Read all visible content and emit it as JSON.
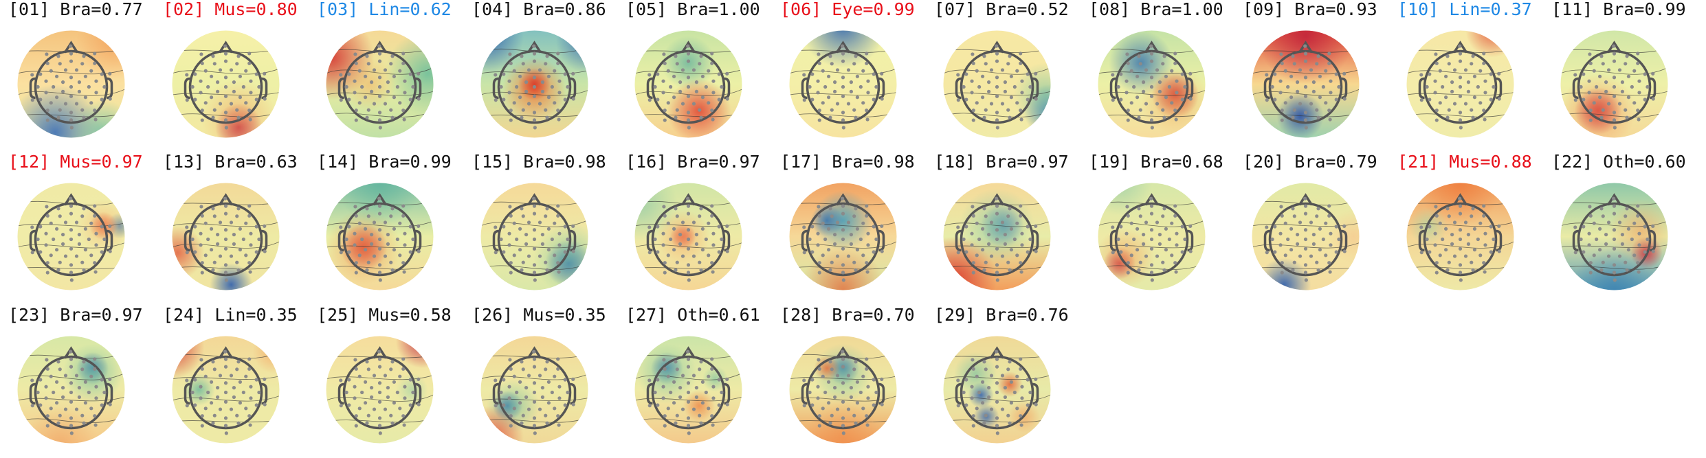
{
  "palette": {
    "black": "#111111",
    "red": "#e8101a",
    "blue": "#1e88e5"
  },
  "components": [
    {
      "index": "[01]",
      "label": "Bra=0.77",
      "color": "black",
      "scheme": "grad-tb-orange-blue"
    },
    {
      "index": "[02]",
      "label": "Mus=0.80",
      "color": "red",
      "scheme": "bottom-red"
    },
    {
      "index": "[03]",
      "label": "Lin=0.62",
      "color": "blue",
      "scheme": "left-red-right-green"
    },
    {
      "index": "[04]",
      "label": "Bra=0.86",
      "color": "black",
      "scheme": "center-red-edge-blue"
    },
    {
      "index": "[05]",
      "label": "Bra=1.00",
      "color": "black",
      "scheme": "top-green-bottom-red"
    },
    {
      "index": "[06]",
      "label": "Eye=0.99",
      "color": "red",
      "scheme": "top-blue-band"
    },
    {
      "index": "[07]",
      "label": "Bra=0.52",
      "color": "black",
      "scheme": "flat-right-blue"
    },
    {
      "index": "[08]",
      "label": "Bra=1.00",
      "color": "black",
      "scheme": "blue-left-red-right"
    },
    {
      "index": "[09]",
      "label": "Bra=0.93",
      "color": "black",
      "scheme": "top-red-bottom-blue"
    },
    {
      "index": "[10]",
      "label": "Lin=0.37",
      "color": "blue",
      "scheme": "flat-topright-red"
    },
    {
      "index": "[11]",
      "label": "Bra=0.99",
      "color": "black",
      "scheme": "left-red-spot"
    },
    {
      "index": "[12]",
      "label": "Mus=0.97",
      "color": "red",
      "scheme": "right-red-edge"
    },
    {
      "index": "[13]",
      "label": "Bra=0.63",
      "color": "black",
      "scheme": "bottom-blue-spot"
    },
    {
      "index": "[14]",
      "label": "Bra=0.99",
      "color": "black",
      "scheme": "left-red-top-green"
    },
    {
      "index": "[15]",
      "label": "Bra=0.98",
      "color": "black",
      "scheme": "bottom-right-blue"
    },
    {
      "index": "[16]",
      "label": "Bra=0.97",
      "color": "black",
      "scheme": "center-red-spot"
    },
    {
      "index": "[17]",
      "label": "Bra=0.98",
      "color": "black",
      "scheme": "center-blue-edge-red"
    },
    {
      "index": "[18]",
      "label": "Bra=0.97",
      "color": "black",
      "scheme": "center-blue-bottom-red"
    },
    {
      "index": "[19]",
      "label": "Bra=0.68",
      "color": "black",
      "scheme": "left-red-spot-low"
    },
    {
      "index": "[20]",
      "label": "Bra=0.79",
      "color": "black",
      "scheme": "bottom-left-blue"
    },
    {
      "index": "[21]",
      "label": "Mus=0.88",
      "color": "red",
      "scheme": "top-orange"
    },
    {
      "index": "[22]",
      "label": "Oth=0.60",
      "color": "black",
      "scheme": "right-red-bottom-blue"
    },
    {
      "index": "[23]",
      "label": "Bra=0.97",
      "color": "black",
      "scheme": "right-blue-spot"
    },
    {
      "index": "[24]",
      "label": "Lin=0.35",
      "color": "black",
      "scheme": "topleft-red-left-green"
    },
    {
      "index": "[25]",
      "label": "Mus=0.58",
      "color": "black",
      "scheme": "topright-red"
    },
    {
      "index": "[26]",
      "label": "Mus=0.35",
      "color": "black",
      "scheme": "left-blue-spot"
    },
    {
      "index": "[27]",
      "label": "Oth=0.61",
      "color": "black",
      "scheme": "mixed-blue-green"
    },
    {
      "index": "[28]",
      "label": "Bra=0.70",
      "color": "black",
      "scheme": "mixed-blue-red"
    },
    {
      "index": "[29]",
      "label": "Bra=0.76",
      "color": "black",
      "scheme": "mixed-multi"
    }
  ]
}
